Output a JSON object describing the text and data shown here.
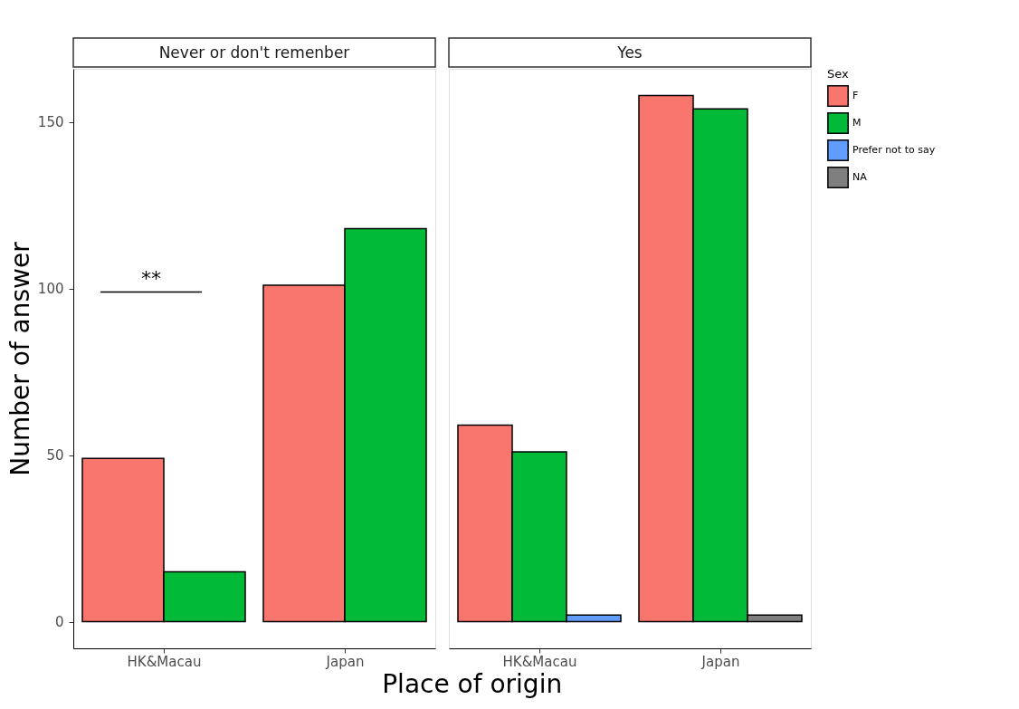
{
  "chart_data": [
    {
      "type": "bar",
      "title": "Never or don't remenber",
      "xlabel": "Place of origin",
      "ylabel": "Number of answer",
      "categories": [
        "HK&Macau",
        "Japan"
      ],
      "series": [
        {
          "color": "#f8766d",
          "values": [
            49,
            101
          ]
        },
        {
          "color": "#00ba38",
          "values": [
            15,
            118
          ]
        }
      ],
      "ylim": [
        -8,
        166
      ],
      "yticks": [
        0,
        50,
        100,
        150
      ],
      "grid": false,
      "annotations": [
        "**"
      ]
    },
    {
      "type": "bar",
      "title": "Yes",
      "legend_title": "Sex",
      "categories": [
        "HK&Macau",
        "Japan"
      ],
      "series": [
        {
          "name": "F",
          "color": "#f8766d",
          "values": [
            59,
            158
          ]
        },
        {
          "name": "M",
          "color": "#00ba38",
          "values": [
            51,
            154
          ]
        },
        {
          "name": "Prefer not to say",
          "color": "#619cff",
          "values": [
            2,
            null
          ]
        },
        {
          "name": "NA",
          "color": "#7f7f7f",
          "values": [
            null,
            2
          ]
        }
      ],
      "ylim": [
        -8,
        166
      ],
      "yticks": [
        0,
        50,
        100,
        150
      ],
      "grid": false,
      "legend": "right",
      "tick_labels": "x"
    }
  ]
}
